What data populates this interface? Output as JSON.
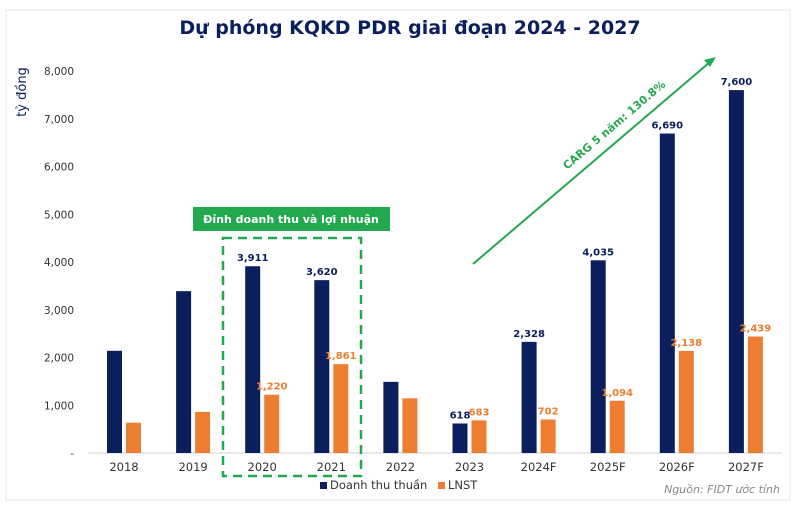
{
  "chart_data": {
    "type": "bar",
    "title": "Dự phóng KQKD PDR giai đoạn 2024 - 2027",
    "ylabel": "tỷ đồng",
    "ylim": [
      0,
      8000
    ],
    "yticks": [
      "-",
      "1,000",
      "2,000",
      "3,000",
      "4,000",
      "5,000",
      "6,000",
      "7,000",
      "8,000"
    ],
    "ytick_values": [
      0,
      1000,
      2000,
      3000,
      4000,
      5000,
      6000,
      7000,
      8000
    ],
    "categories": [
      "2018",
      "2019",
      "2020",
      "2021",
      "2022",
      "2023",
      "2024F",
      "2025F",
      "2026F",
      "2027F"
    ],
    "series": [
      {
        "name": "Doanh thu thuần",
        "color": "#0b1f5c",
        "values": [
          2140,
          3390,
          3911,
          3620,
          1490,
          618,
          2328,
          4035,
          6690,
          7600
        ],
        "labels": [
          "",
          "",
          "3,911",
          "3,620",
          "",
          "618",
          "2,328",
          "4,035",
          "6,690",
          "7,600"
        ]
      },
      {
        "name": "LNST",
        "color": "#ed7d31",
        "values": [
          635,
          860,
          1220,
          1861,
          1145,
          683,
          702,
          1094,
          2138,
          2439
        ],
        "labels": [
          "",
          "",
          "1,220",
          "1,861",
          "",
          "683",
          "702",
          "1,094",
          "2,138",
          "2,439"
        ]
      }
    ],
    "grid": false,
    "legend": "bottom",
    "annotations": {
      "highlight_box": "Đỉnh doanh thu và lợi nhuận",
      "highlight_categories": [
        "2020",
        "2021"
      ],
      "trend_arrow": "CARG 5 năm: 130.8%",
      "accent_color": "#22a94f"
    },
    "source": "Nguồn: FIDT ước tính"
  }
}
